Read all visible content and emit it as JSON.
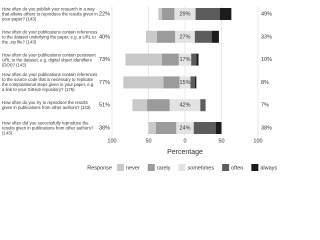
{
  "chart_data": {
    "type": "diverging-bar",
    "x_label": "Percentage",
    "legend_title": "Response",
    "categories": [
      "How often do you publish your research in a way that allows others to reproduce the results given in your paper? (143)",
      "How often do your publications contain references to the dataset underlying the paper, e.g. a URL to the .zip file? (143)",
      "How often do your publications contain persistent URL to the dataset, e.g. digital object identifiers (DOI)? (143)",
      "How often do your publications contain references to the source code that is necessary to replicate the computational steps given in your paper, e.g. a link to your GitHub repository? (176)",
      "How often do you try to reproduce the results given in publications from other authors? (143)",
      "How often did you successfully reproduce the results given in publications from other authors? (143)"
    ],
    "series": [
      {
        "name": "never",
        "color": "#c9c9c9",
        "side": "low",
        "values": [
          5,
          15,
          50,
          55,
          20,
          10
        ]
      },
      {
        "name": "rarely",
        "color": "#9b9b9b",
        "side": "low",
        "values": [
          17,
          25,
          23,
          22,
          31,
          28
        ]
      },
      {
        "name": "sometimes",
        "color": "#e3e3e3",
        "side": "mid",
        "values": [
          29,
          27,
          17,
          15,
          42,
          24
        ]
      },
      {
        "name": "often",
        "color": "#5c5c5c",
        "side": "high",
        "values": [
          33,
          23,
          7,
          6,
          6,
          30
        ]
      },
      {
        "name": "always",
        "color": "#1c1c1c",
        "side": "high",
        "values": [
          16,
          10,
          3,
          2,
          1,
          8
        ]
      }
    ],
    "summaries": {
      "low": {
        "values": [
          22,
          40,
          73,
          77,
          51,
          38
        ],
        "value_labels": [
          "22%",
          "40%",
          "73%",
          "77%",
          "51%",
          "38%"
        ]
      },
      "mid": {
        "values": [
          29,
          27,
          17,
          15,
          42,
          24
        ],
        "value_labels": [
          "29%",
          "27%",
          "17%",
          "15%",
          "42%",
          "24%"
        ]
      },
      "high": {
        "values": [
          49,
          33,
          10,
          8,
          7,
          38
        ],
        "value_labels": [
          "49%",
          "33%",
          "10%",
          "8%",
          "7%",
          "38%"
        ]
      }
    },
    "xlim": [
      -100,
      100
    ],
    "xticks": [
      {
        "value": -100,
        "label": "100"
      },
      {
        "value": -50,
        "label": "50"
      },
      0,
      50,
      100
    ],
    "grid": true
  }
}
